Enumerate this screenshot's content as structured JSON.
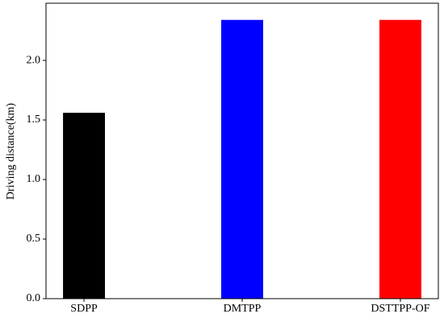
{
  "chart_data": {
    "type": "bar",
    "ylabel": "Driving distance(km)",
    "categories": [
      "SDPP",
      "DMTPP",
      "DSTTPP-OF"
    ],
    "values": [
      1.56,
      2.34,
      2.34
    ],
    "colors": [
      "#000000",
      "#0000ff",
      "#ff0000"
    ],
    "ylim": [
      0,
      2.48
    ],
    "yticks": [
      {
        "value": 0,
        "label": "0.0"
      },
      {
        "value": 0.5,
        "label": "0.5"
      },
      {
        "value": 1,
        "label": "1.0"
      },
      {
        "value": 1.5,
        "label": "1.5"
      },
      {
        "value": 2,
        "label": "2.0"
      }
    ],
    "grid": false
  }
}
